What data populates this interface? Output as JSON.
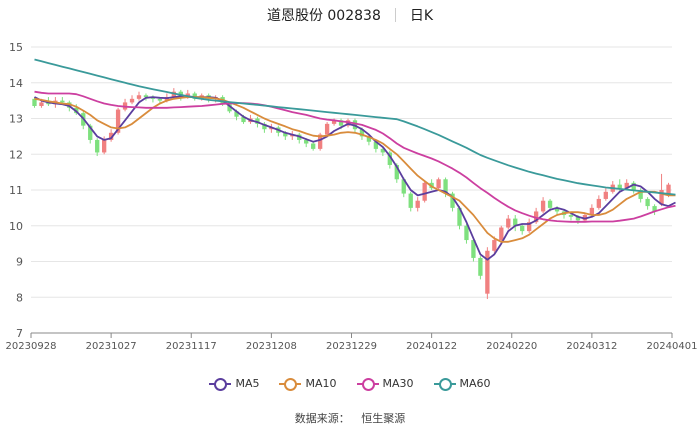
{
  "header": {
    "stock": "道恩股份 002838",
    "period": "日K"
  },
  "source": {
    "label": "数据来源：",
    "name": "恒生聚源"
  },
  "colors": {
    "up": "#f08080",
    "down": "#7ee07e",
    "MA5": "#5b3e9e",
    "MA10": "#d98c3c",
    "MA30": "#cc3fa0",
    "MA60": "#3a9a9a"
  },
  "chart_data": {
    "type": "line",
    "ylim": [
      7,
      15
    ],
    "yticks": [
      7,
      8,
      9,
      10,
      11,
      12,
      13,
      14,
      15
    ],
    "xticks": [
      "20230928",
      "20231027",
      "20231117",
      "20231208",
      "20231229",
      "20240122",
      "20240220",
      "20240312",
      "20240401"
    ],
    "candles_note": "daily candlestick bars, red up, green down",
    "candles": [
      {
        "o": 13.55,
        "c": 13.35,
        "h": 13.6,
        "l": 13.3
      },
      {
        "o": 13.35,
        "c": 13.45,
        "h": 13.55,
        "l": 13.3
      },
      {
        "o": 13.45,
        "c": 13.4,
        "h": 13.6,
        "l": 13.35
      },
      {
        "o": 13.4,
        "c": 13.5,
        "h": 13.6,
        "l": 13.3
      },
      {
        "o": 13.5,
        "c": 13.45,
        "h": 13.6,
        "l": 13.4
      },
      {
        "o": 13.45,
        "c": 13.3,
        "h": 13.5,
        "l": 13.2
      },
      {
        "o": 13.3,
        "c": 13.15,
        "h": 13.4,
        "l": 13.1
      },
      {
        "o": 13.15,
        "c": 12.8,
        "h": 13.2,
        "l": 12.7
      },
      {
        "o": 12.8,
        "c": 12.4,
        "h": 12.85,
        "l": 12.3
      },
      {
        "o": 12.4,
        "c": 12.05,
        "h": 12.45,
        "l": 11.95
      },
      {
        "o": 12.05,
        "c": 12.4,
        "h": 12.5,
        "l": 12.0
      },
      {
        "o": 12.4,
        "c": 12.6,
        "h": 12.7,
        "l": 12.35
      },
      {
        "o": 12.6,
        "c": 13.25,
        "h": 13.3,
        "l": 12.55
      },
      {
        "o": 13.25,
        "c": 13.45,
        "h": 13.55,
        "l": 13.2
      },
      {
        "o": 13.45,
        "c": 13.55,
        "h": 13.65,
        "l": 13.4
      },
      {
        "o": 13.55,
        "c": 13.65,
        "h": 13.75,
        "l": 13.5
      },
      {
        "o": 13.65,
        "c": 13.6,
        "h": 13.7,
        "l": 13.5
      },
      {
        "o": 13.6,
        "c": 13.55,
        "h": 13.65,
        "l": 13.45
      },
      {
        "o": 13.55,
        "c": 13.5,
        "h": 13.6,
        "l": 13.4
      },
      {
        "o": 13.5,
        "c": 13.6,
        "h": 13.7,
        "l": 13.45
      },
      {
        "o": 13.6,
        "c": 13.75,
        "h": 13.85,
        "l": 13.55
      },
      {
        "o": 13.75,
        "c": 13.6,
        "h": 13.8,
        "l": 13.5
      },
      {
        "o": 13.6,
        "c": 13.7,
        "h": 13.8,
        "l": 13.55
      },
      {
        "o": 13.7,
        "c": 13.55,
        "h": 13.75,
        "l": 13.5
      },
      {
        "o": 13.55,
        "c": 13.65,
        "h": 13.7,
        "l": 13.5
      },
      {
        "o": 13.65,
        "c": 13.55,
        "h": 13.7,
        "l": 13.45
      },
      {
        "o": 13.55,
        "c": 13.6,
        "h": 13.65,
        "l": 13.45
      },
      {
        "o": 13.6,
        "c": 13.4,
        "h": 13.65,
        "l": 13.35
      },
      {
        "o": 13.4,
        "c": 13.2,
        "h": 13.45,
        "l": 13.15
      },
      {
        "o": 13.2,
        "c": 13.05,
        "h": 13.25,
        "l": 12.95
      },
      {
        "o": 13.05,
        "c": 12.9,
        "h": 13.1,
        "l": 12.85
      },
      {
        "o": 12.9,
        "c": 13.0,
        "h": 13.1,
        "l": 12.85
      },
      {
        "o": 13.0,
        "c": 12.85,
        "h": 13.05,
        "l": 12.75
      },
      {
        "o": 12.85,
        "c": 12.7,
        "h": 12.9,
        "l": 12.6
      },
      {
        "o": 12.7,
        "c": 12.75,
        "h": 12.85,
        "l": 12.6
      },
      {
        "o": 12.75,
        "c": 12.6,
        "h": 12.8,
        "l": 12.5
      },
      {
        "o": 12.6,
        "c": 12.5,
        "h": 12.65,
        "l": 12.4
      },
      {
        "o": 12.5,
        "c": 12.55,
        "h": 12.65,
        "l": 12.4
      },
      {
        "o": 12.55,
        "c": 12.4,
        "h": 12.6,
        "l": 12.3
      },
      {
        "o": 12.4,
        "c": 12.3,
        "h": 12.45,
        "l": 12.2
      },
      {
        "o": 12.3,
        "c": 12.15,
        "h": 12.35,
        "l": 12.1
      },
      {
        "o": 12.15,
        "c": 12.55,
        "h": 12.6,
        "l": 12.1
      },
      {
        "o": 12.55,
        "c": 12.85,
        "h": 12.9,
        "l": 12.5
      },
      {
        "o": 12.85,
        "c": 12.95,
        "h": 13.0,
        "l": 12.8
      },
      {
        "o": 12.95,
        "c": 12.8,
        "h": 13.0,
        "l": 12.7
      },
      {
        "o": 12.8,
        "c": 12.95,
        "h": 13.0,
        "l": 12.75
      },
      {
        "o": 12.95,
        "c": 12.7,
        "h": 13.0,
        "l": 12.6
      },
      {
        "o": 12.7,
        "c": 12.5,
        "h": 12.75,
        "l": 12.4
      },
      {
        "o": 12.5,
        "c": 12.35,
        "h": 12.55,
        "l": 12.25
      },
      {
        "o": 12.35,
        "c": 12.15,
        "h": 12.4,
        "l": 12.05
      },
      {
        "o": 12.15,
        "c": 12.05,
        "h": 12.2,
        "l": 11.95
      },
      {
        "o": 12.05,
        "c": 11.7,
        "h": 12.1,
        "l": 11.6
      },
      {
        "o": 11.7,
        "c": 11.3,
        "h": 11.75,
        "l": 11.2
      },
      {
        "o": 11.3,
        "c": 10.9,
        "h": 11.35,
        "l": 10.8
      },
      {
        "o": 10.9,
        "c": 10.5,
        "h": 10.95,
        "l": 10.4
      },
      {
        "o": 10.5,
        "c": 10.7,
        "h": 10.8,
        "l": 10.4
      },
      {
        "o": 10.7,
        "c": 11.2,
        "h": 11.25,
        "l": 10.65
      },
      {
        "o": 11.2,
        "c": 11.05,
        "h": 11.3,
        "l": 11.0
      },
      {
        "o": 11.05,
        "c": 11.3,
        "h": 11.35,
        "l": 11.0
      },
      {
        "o": 11.3,
        "c": 10.9,
        "h": 11.35,
        "l": 10.8
      },
      {
        "o": 10.9,
        "c": 10.5,
        "h": 10.95,
        "l": 10.4
      },
      {
        "o": 10.5,
        "c": 10.0,
        "h": 10.55,
        "l": 9.9
      },
      {
        "o": 10.0,
        "c": 9.6,
        "h": 10.05,
        "l": 9.5
      },
      {
        "o": 9.6,
        "c": 9.1,
        "h": 9.65,
        "l": 9.0
      },
      {
        "o": 9.1,
        "c": 8.6,
        "h": 9.15,
        "l": 8.5
      },
      {
        "o": 8.1,
        "c": 9.3,
        "h": 9.4,
        "l": 7.95
      },
      {
        "o": 9.3,
        "c": 9.6,
        "h": 9.7,
        "l": 9.25
      },
      {
        "o": 9.6,
        "c": 9.95,
        "h": 10.0,
        "l": 9.55
      },
      {
        "o": 9.95,
        "c": 10.2,
        "h": 10.3,
        "l": 9.9
      },
      {
        "o": 10.2,
        "c": 10.0,
        "h": 10.3,
        "l": 9.85
      },
      {
        "o": 10.0,
        "c": 9.85,
        "h": 10.05,
        "l": 9.75
      },
      {
        "o": 9.85,
        "c": 10.1,
        "h": 10.2,
        "l": 9.8
      },
      {
        "o": 10.1,
        "c": 10.4,
        "h": 10.5,
        "l": 10.05
      },
      {
        "o": 10.4,
        "c": 10.7,
        "h": 10.8,
        "l": 10.35
      },
      {
        "o": 10.7,
        "c": 10.5,
        "h": 10.75,
        "l": 10.4
      },
      {
        "o": 10.5,
        "c": 10.4,
        "h": 10.55,
        "l": 10.3
      },
      {
        "o": 10.4,
        "c": 10.3,
        "h": 10.45,
        "l": 10.2
      },
      {
        "o": 10.3,
        "c": 10.25,
        "h": 10.35,
        "l": 10.15
      },
      {
        "o": 10.25,
        "c": 10.15,
        "h": 10.3,
        "l": 10.05
      },
      {
        "o": 10.15,
        "c": 10.3,
        "h": 10.35,
        "l": 10.1
      },
      {
        "o": 10.3,
        "c": 10.5,
        "h": 10.6,
        "l": 10.25
      },
      {
        "o": 10.5,
        "c": 10.75,
        "h": 10.85,
        "l": 10.45
      },
      {
        "o": 10.75,
        "c": 10.95,
        "h": 11.05,
        "l": 10.7
      },
      {
        "o": 10.95,
        "c": 11.15,
        "h": 11.25,
        "l": 10.9
      },
      {
        "o": 11.15,
        "c": 11.05,
        "h": 11.3,
        "l": 10.95
      },
      {
        "o": 11.05,
        "c": 11.2,
        "h": 11.3,
        "l": 11.0
      },
      {
        "o": 11.2,
        "c": 11.0,
        "h": 11.25,
        "l": 10.9
      },
      {
        "o": 11.0,
        "c": 10.75,
        "h": 11.05,
        "l": 10.65
      },
      {
        "o": 10.75,
        "c": 10.55,
        "h": 10.8,
        "l": 10.45
      },
      {
        "o": 10.55,
        "c": 10.4,
        "h": 10.6,
        "l": 10.3
      },
      {
        "o": 10.6,
        "c": 11.0,
        "h": 11.45,
        "l": 10.55
      },
      {
        "o": 10.85,
        "c": 11.15,
        "h": 11.2,
        "l": 10.8
      }
    ],
    "series": [
      {
        "name": "MA5",
        "values": [
          13.6,
          13.5,
          13.45,
          13.42,
          13.4,
          13.35,
          13.2,
          13.0,
          12.75,
          12.5,
          12.4,
          12.45,
          12.7,
          12.95,
          13.2,
          13.45,
          13.58,
          13.6,
          13.58,
          13.57,
          13.6,
          13.62,
          13.62,
          13.6,
          13.6,
          13.6,
          13.58,
          13.5,
          13.35,
          13.2,
          13.05,
          12.95,
          12.9,
          12.82,
          12.75,
          12.68,
          12.6,
          12.55,
          12.5,
          12.42,
          12.35,
          12.4,
          12.5,
          12.65,
          12.75,
          12.85,
          12.8,
          12.7,
          12.55,
          12.35,
          12.2,
          11.95,
          11.65,
          11.3,
          11.0,
          10.85,
          10.9,
          10.95,
          11.0,
          10.95,
          10.8,
          10.5,
          10.1,
          9.65,
          9.2,
          9.05,
          9.2,
          9.5,
          9.85,
          10.0,
          10.05,
          10.05,
          10.15,
          10.3,
          10.45,
          10.5,
          10.45,
          10.35,
          10.25,
          10.2,
          10.25,
          10.35,
          10.55,
          10.75,
          10.95,
          11.05,
          11.15,
          11.1,
          10.95,
          10.75,
          10.6,
          10.55,
          10.65
        ]
      },
      {
        "name": "MA10",
        "values": [
          13.55,
          13.52,
          13.48,
          13.45,
          13.42,
          13.4,
          13.33,
          13.22,
          13.1,
          12.95,
          12.85,
          12.75,
          12.72,
          12.75,
          12.85,
          13.0,
          13.15,
          13.3,
          13.42,
          13.5,
          13.55,
          13.58,
          13.6,
          13.6,
          13.6,
          13.58,
          13.56,
          13.52,
          13.45,
          13.38,
          13.3,
          13.2,
          13.1,
          13.0,
          12.92,
          12.85,
          12.78,
          12.7,
          12.65,
          12.58,
          12.52,
          12.5,
          12.52,
          12.55,
          12.6,
          12.62,
          12.6,
          12.55,
          12.48,
          12.4,
          12.3,
          12.15,
          12.0,
          11.8,
          11.6,
          11.4,
          11.25,
          11.1,
          11.0,
          10.9,
          10.8,
          10.7,
          10.5,
          10.3,
          10.05,
          9.8,
          9.65,
          9.55,
          9.55,
          9.6,
          9.65,
          9.75,
          9.9,
          10.05,
          10.2,
          10.3,
          10.35,
          10.38,
          10.38,
          10.35,
          10.3,
          10.3,
          10.35,
          10.45,
          10.6,
          10.75,
          10.85,
          10.95,
          10.95,
          10.95,
          10.9,
          10.85,
          10.85
        ]
      },
      {
        "name": "MA30",
        "values": [
          13.75,
          13.72,
          13.7,
          13.7,
          13.7,
          13.7,
          13.68,
          13.62,
          13.55,
          13.48,
          13.42,
          13.38,
          13.35,
          13.33,
          13.32,
          13.31,
          13.3,
          13.3,
          13.3,
          13.3,
          13.31,
          13.32,
          13.33,
          13.34,
          13.35,
          13.37,
          13.39,
          13.41,
          13.42,
          13.43,
          13.43,
          13.42,
          13.4,
          13.37,
          13.33,
          13.28,
          13.23,
          13.18,
          13.14,
          13.1,
          13.05,
          13.0,
          12.97,
          12.95,
          12.92,
          12.9,
          12.86,
          12.82,
          12.75,
          12.68,
          12.58,
          12.45,
          12.3,
          12.18,
          12.1,
          12.02,
          11.95,
          11.88,
          11.8,
          11.7,
          11.6,
          11.48,
          11.35,
          11.2,
          11.05,
          10.92,
          10.78,
          10.65,
          10.53,
          10.43,
          10.35,
          10.28,
          10.22,
          10.18,
          10.15,
          10.13,
          10.12,
          10.11,
          10.11,
          10.11,
          10.12,
          10.12,
          10.12,
          10.12,
          10.14,
          10.17,
          10.2,
          10.26,
          10.33,
          10.4,
          10.46,
          10.52,
          10.56
        ]
      },
      {
        "name": "MA60",
        "values": [
          14.65,
          14.6,
          14.55,
          14.5,
          14.45,
          14.4,
          14.35,
          14.3,
          14.25,
          14.2,
          14.15,
          14.1,
          14.05,
          14.0,
          13.95,
          13.9,
          13.86,
          13.82,
          13.78,
          13.74,
          13.7,
          13.66,
          13.62,
          13.58,
          13.55,
          13.52,
          13.5,
          13.48,
          13.46,
          13.44,
          13.42,
          13.4,
          13.38,
          13.36,
          13.34,
          13.32,
          13.3,
          13.28,
          13.26,
          13.24,
          13.22,
          13.2,
          13.18,
          13.16,
          13.14,
          13.12,
          13.1,
          13.08,
          13.06,
          13.04,
          13.02,
          13.0,
          12.98,
          12.92,
          12.85,
          12.78,
          12.7,
          12.62,
          12.54,
          12.45,
          12.36,
          12.27,
          12.18,
          12.08,
          11.98,
          11.9,
          11.83,
          11.76,
          11.69,
          11.63,
          11.57,
          11.51,
          11.46,
          11.41,
          11.36,
          11.31,
          11.27,
          11.23,
          11.19,
          11.16,
          11.13,
          11.1,
          11.07,
          11.05,
          11.03,
          11.01,
          10.99,
          10.97,
          10.95,
          10.93,
          10.91,
          10.89,
          10.87
        ]
      }
    ]
  }
}
